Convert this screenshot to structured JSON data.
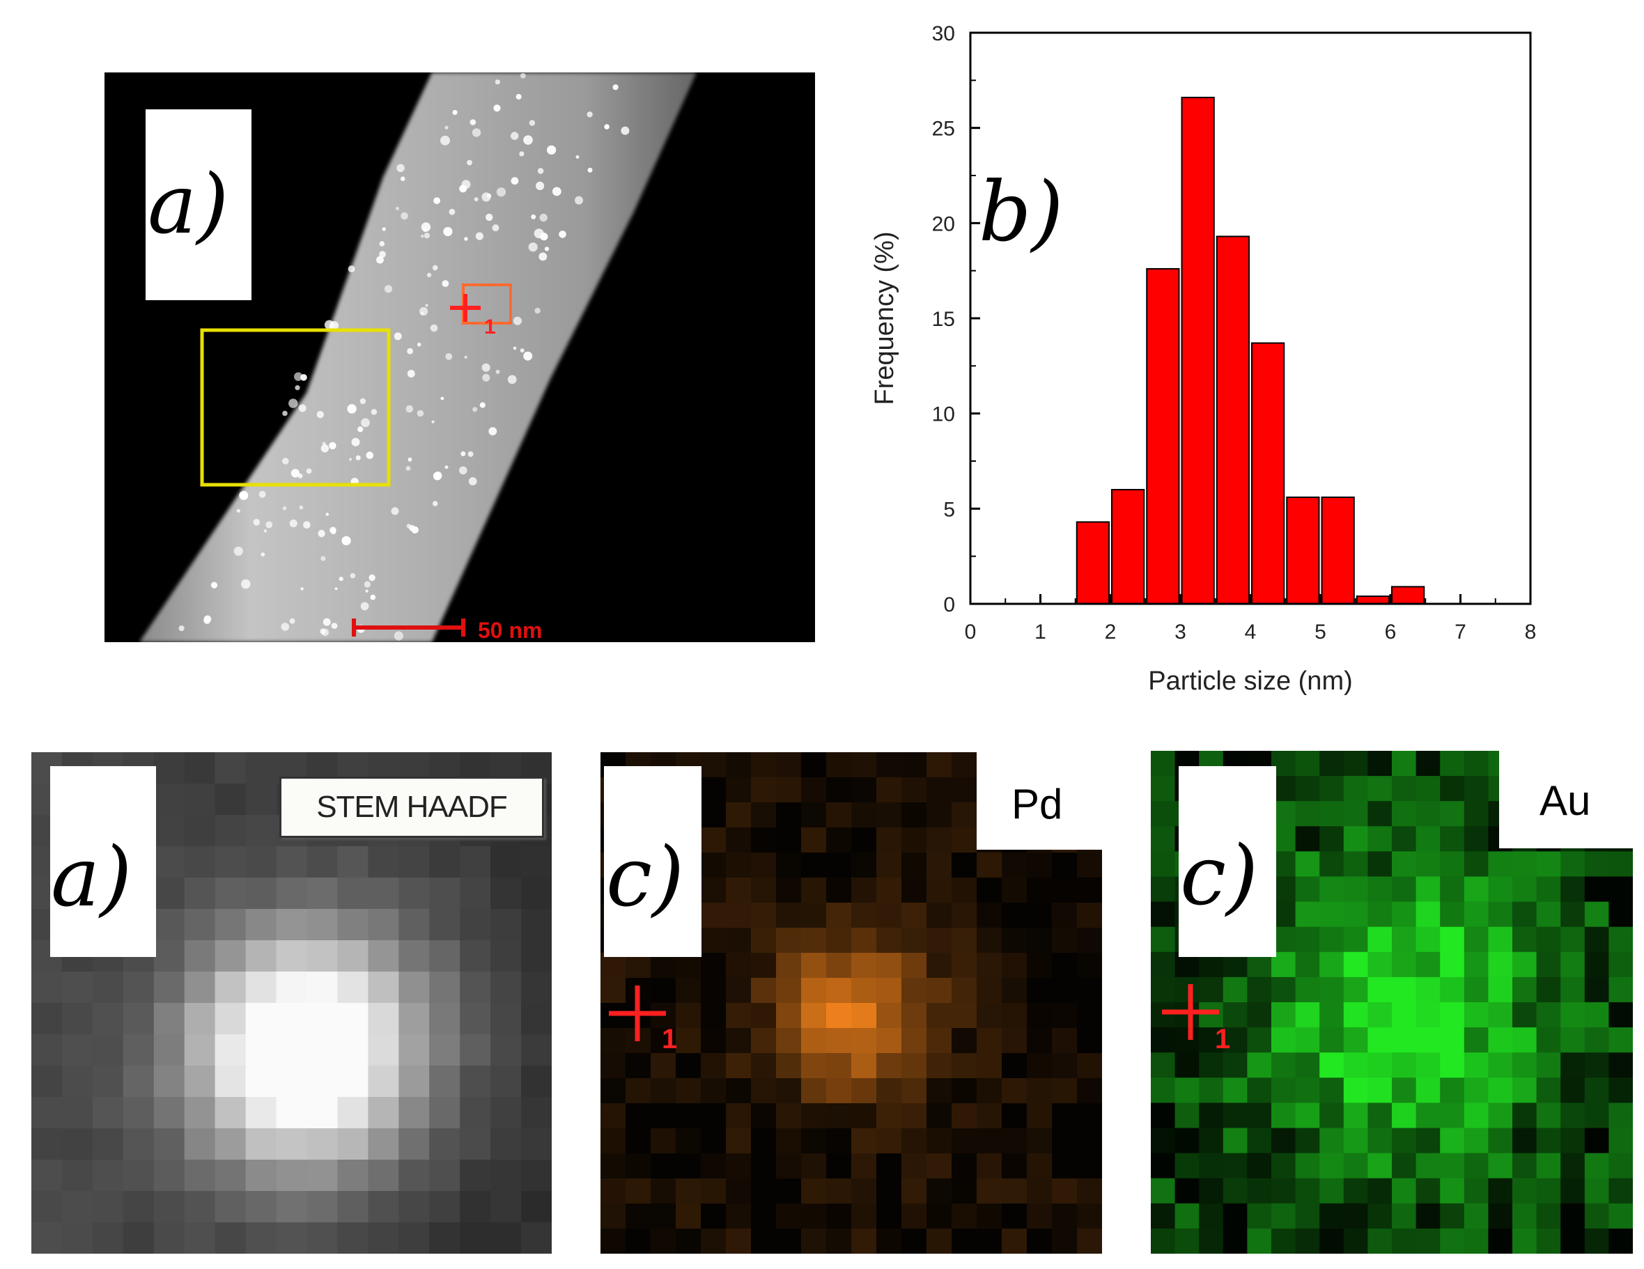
{
  "panels": {
    "tem": {
      "label": "a)",
      "scale_text": "50 nm",
      "marker_number": "1"
    },
    "chart": {
      "label": "b)"
    },
    "haadf": {
      "label": "a)",
      "title": "STEM HAADF"
    },
    "pd_map": {
      "label": "c)",
      "element": "Pd",
      "marker_number": "1"
    },
    "au_map": {
      "label": "c)",
      "element": "Au",
      "marker_number": "1"
    }
  },
  "chart_data": {
    "type": "bar",
    "title": "",
    "xlabel": "Particle size (nm)",
    "ylabel": "Frequency (%)",
    "xlim": [
      0,
      8
    ],
    "ylim": [
      0,
      30
    ],
    "xticks": [
      0,
      1,
      2,
      3,
      4,
      5,
      6,
      7,
      8
    ],
    "yticks": [
      0,
      5,
      10,
      15,
      20,
      25,
      30
    ],
    "bin_width": 0.5,
    "bins": [
      1.5,
      2.0,
      2.5,
      3.0,
      3.5,
      4.0,
      4.5,
      5.0,
      5.5,
      6.0
    ],
    "values": [
      4.3,
      6.0,
      17.6,
      26.6,
      19.3,
      13.7,
      5.6,
      5.6,
      0.4,
      0.9
    ],
    "bar_color": "#ff0000",
    "grid": false
  },
  "colors": {
    "marker": "#ff2020",
    "roi": "#e8e000",
    "pd": "#ff8a1e",
    "au": "#22e822"
  }
}
